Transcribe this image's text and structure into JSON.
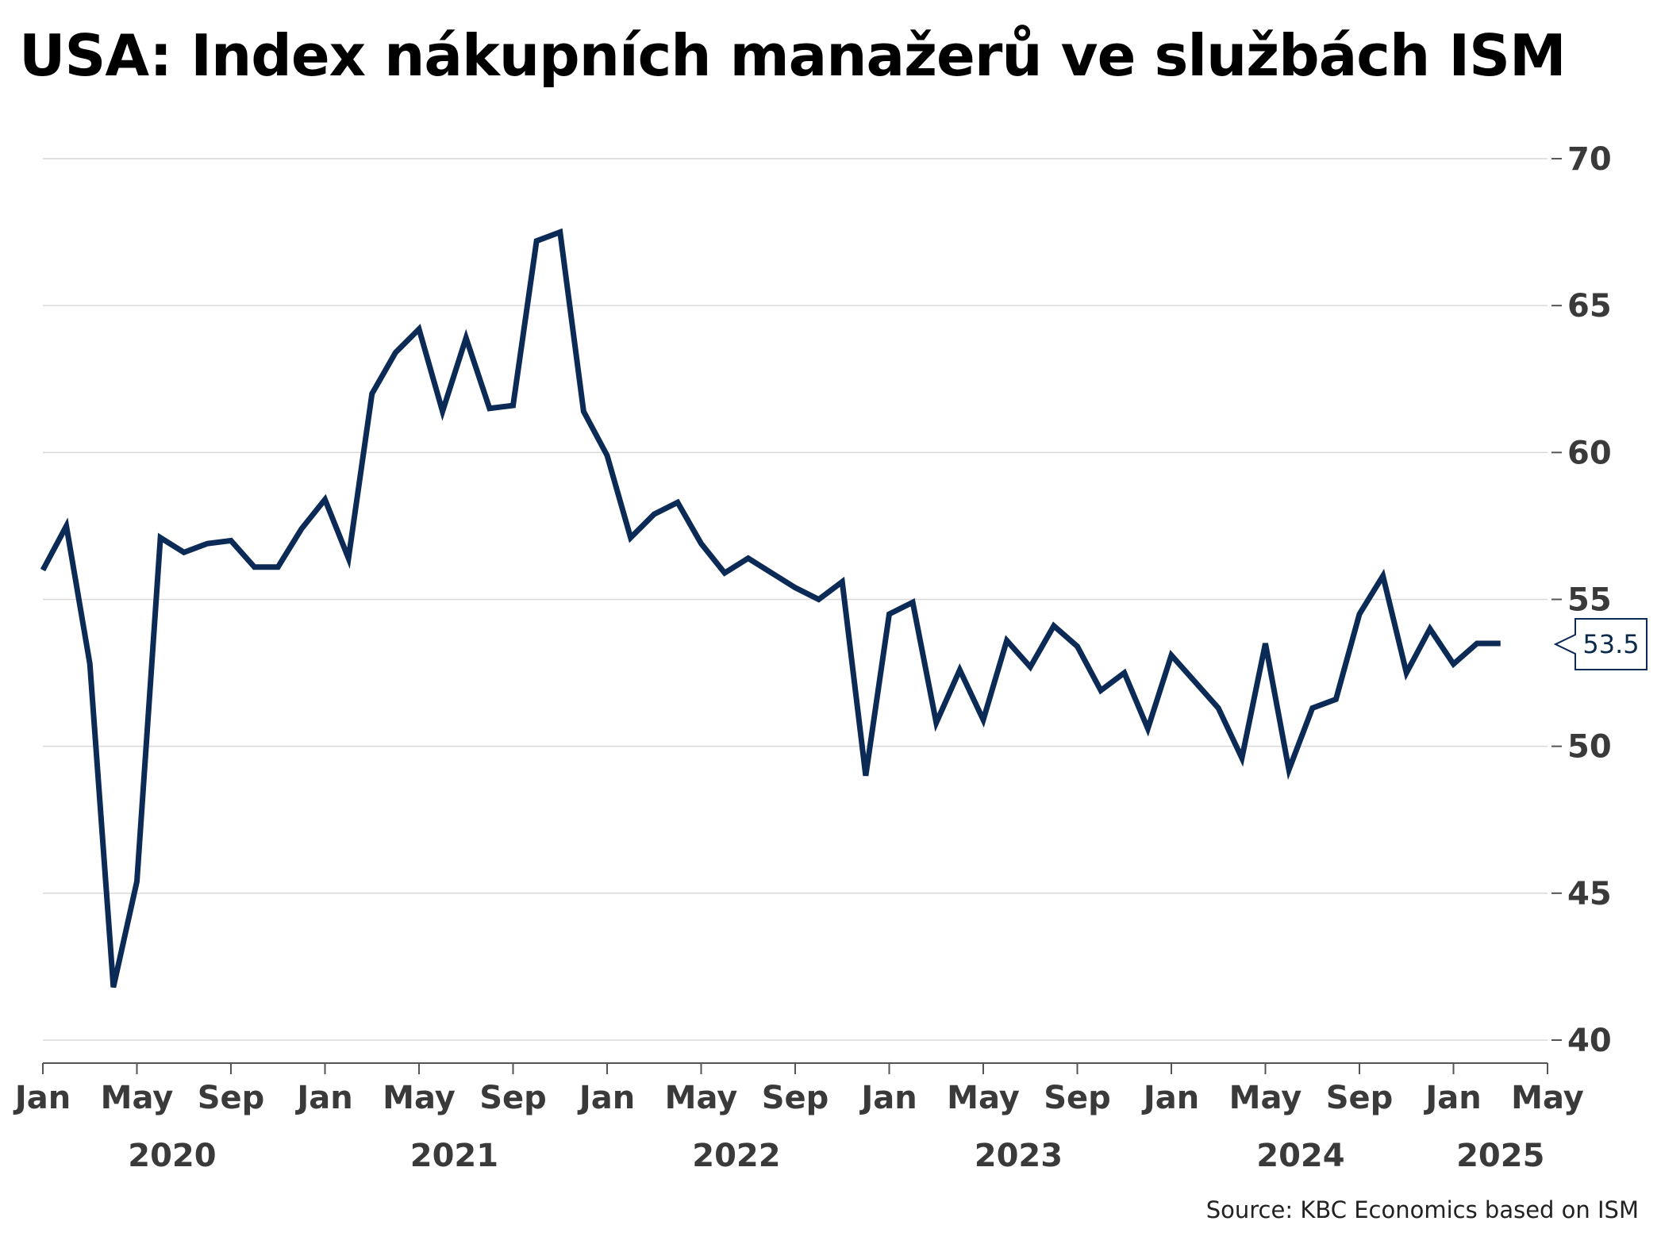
{
  "title": "USA: Index nákupních manažerů ve službách ISM",
  "source": "Source: KBC Economics based on ISM",
  "chart_data": {
    "type": "line",
    "title": "USA: Index nákupních manažerů ve službách ISM",
    "xlabel": "",
    "ylabel": "",
    "ylim": [
      40,
      70
    ],
    "xlim": [
      "2020-01",
      "2025-05"
    ],
    "y_ticks": [
      "40",
      "45",
      "50",
      "55",
      "60",
      "65",
      "70"
    ],
    "y_axis_position": "right",
    "grid": true,
    "x_month_labels": [
      "Jan",
      "May",
      "Sep",
      "Jan",
      "May",
      "Sep",
      "Jan",
      "May",
      "Sep",
      "Jan",
      "May",
      "Sep",
      "Jan",
      "May",
      "Sep",
      "Jan",
      "May"
    ],
    "x_year_labels": [
      "2020",
      "2021",
      "2022",
      "2023",
      "2024",
      "2025"
    ],
    "last_value_label": "53.5",
    "series_color": "#0b2a55",
    "series": [
      {
        "x": [
          "2020-01",
          "2020-02",
          "2020-03",
          "2020-04",
          "2020-05",
          "2020-06",
          "2020-07",
          "2020-08",
          "2020-09",
          "2020-10",
          "2020-11",
          "2020-12",
          "2021-01",
          "2021-02",
          "2021-03",
          "2021-04",
          "2021-05",
          "2021-06",
          "2021-07",
          "2021-08",
          "2021-09",
          "2021-10",
          "2021-11",
          "2021-12",
          "2022-01",
          "2022-02",
          "2022-03",
          "2022-04",
          "2022-05",
          "2022-06",
          "2022-07",
          "2022-08",
          "2022-09",
          "2022-10",
          "2022-11",
          "2022-12",
          "2023-01",
          "2023-02",
          "2023-03",
          "2023-04",
          "2023-05",
          "2023-06",
          "2023-07",
          "2023-08",
          "2023-09",
          "2023-10",
          "2023-11",
          "2023-12",
          "2024-01",
          "2024-02",
          "2024-03",
          "2024-04",
          "2024-05",
          "2024-06",
          "2024-07",
          "2024-08",
          "2024-09",
          "2024-10",
          "2024-11",
          "2024-12",
          "2025-01",
          "2025-02",
          "2025-03"
        ],
        "values": [
          56.0,
          57.5,
          52.8,
          41.8,
          45.4,
          57.1,
          56.6,
          56.9,
          57.0,
          56.1,
          56.1,
          57.4,
          58.4,
          56.4,
          62.0,
          63.4,
          64.2,
          61.4,
          63.9,
          61.5,
          61.6,
          67.2,
          67.5,
          61.4,
          59.9,
          57.1,
          57.9,
          58.3,
          56.9,
          55.9,
          56.4,
          55.9,
          55.4,
          55.0,
          55.6,
          49.0,
          54.5,
          54.9,
          50.8,
          52.6,
          50.9,
          53.6,
          52.7,
          54.1,
          53.4,
          51.9,
          52.5,
          50.6,
          53.1,
          52.2,
          51.3,
          49.6,
          53.5,
          49.2,
          51.3,
          51.6,
          54.5,
          55.8,
          52.5,
          54.0,
          52.8,
          53.5,
          53.5
        ]
      }
    ]
  }
}
